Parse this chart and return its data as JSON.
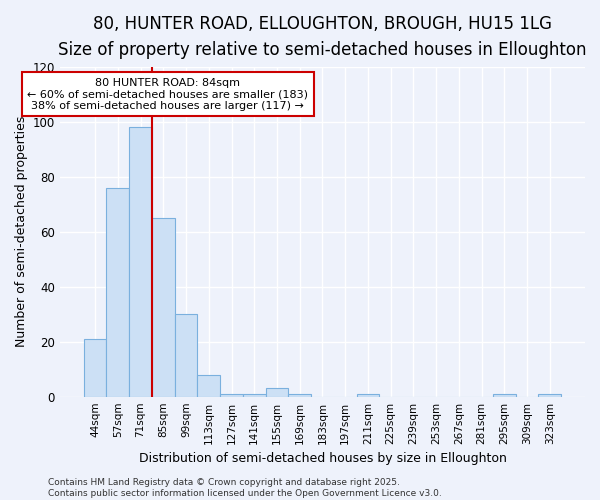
{
  "title": "80, HUNTER ROAD, ELLOUGHTON, BROUGH, HU15 1LG",
  "subtitle": "Size of property relative to semi-detached houses in Elloughton",
  "xlabel": "Distribution of semi-detached houses by size in Elloughton",
  "ylabel": "Number of semi-detached properties",
  "categories": [
    "44sqm",
    "57sqm",
    "71sqm",
    "85sqm",
    "99sqm",
    "113sqm",
    "127sqm",
    "141sqm",
    "155sqm",
    "169sqm",
    "183sqm",
    "197sqm",
    "211sqm",
    "225sqm",
    "239sqm",
    "253sqm",
    "267sqm",
    "281sqm",
    "295sqm",
    "309sqm",
    "323sqm"
  ],
  "values": [
    21,
    76,
    98,
    65,
    30,
    8,
    1,
    1,
    3,
    1,
    0,
    0,
    1,
    0,
    0,
    0,
    0,
    0,
    1,
    0,
    1
  ],
  "bar_color": "#cce0f5",
  "bar_edge_color": "#7ab0de",
  "vline_color": "#cc0000",
  "annotation_text": "80 HUNTER ROAD: 84sqm\n← 60% of semi-detached houses are smaller (183)\n38% of semi-detached houses are larger (117) →",
  "annotation_box_color": "#ffffff",
  "annotation_box_edge_color": "#cc0000",
  "footer_text": "Contains HM Land Registry data © Crown copyright and database right 2025.\nContains public sector information licensed under the Open Government Licence v3.0.",
  "ylim": [
    0,
    120
  ],
  "yticks": [
    0,
    20,
    40,
    60,
    80,
    100,
    120
  ],
  "bg_color": "#eef2fb",
  "grid_color": "#ffffff",
  "title_fontsize": 12,
  "subtitle_fontsize": 10,
  "tick_fontsize": 7.5,
  "ylabel_fontsize": 9,
  "xlabel_fontsize": 9,
  "footer_fontsize": 6.5,
  "annot_fontsize": 8
}
